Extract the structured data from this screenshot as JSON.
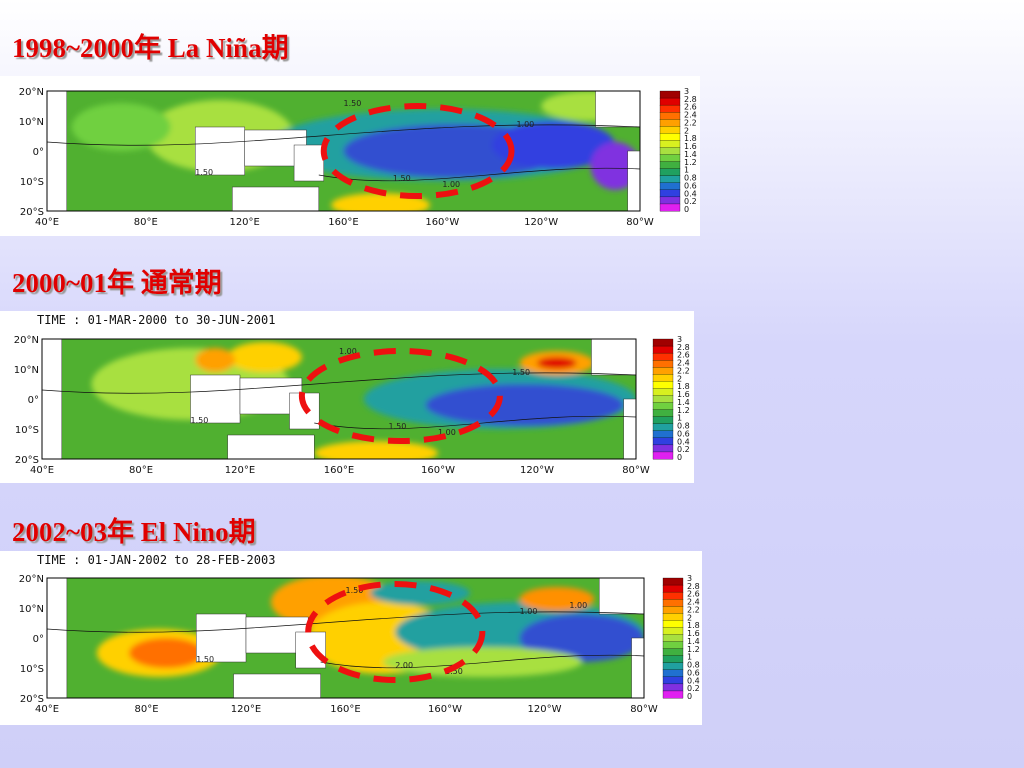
{
  "panels": [
    {
      "heading": "1998~2000年  La Niña期",
      "contours": [
        "1.50",
        "1.50",
        "1.00",
        "1.00",
        "1.50"
      ]
    },
    {
      "heading": "2000~01年   通常期",
      "time": "TIME : 01-MAR-2000 to 30-JUN-2001",
      "contours": [
        "1.00",
        "1.50",
        "1.00",
        "1.50",
        "1.50"
      ]
    },
    {
      "heading": "2002~03年 El Nino期",
      "time": "TIME : 01-JAN-2002  to 28-FEB-2003",
      "contours": [
        "1.50",
        "2.00",
        "1.50",
        "1.00",
        "1.50",
        "1.00"
      ]
    }
  ],
  "lat_labels": [
    "20°N",
    "10°N",
    "0°",
    "10°S",
    "20°S"
  ],
  "lon_labels": [
    "40°E",
    "80°E",
    "120°E",
    "160°E",
    "160°W",
    "120°W",
    "80°W"
  ],
  "colorbar_labels": [
    "3",
    "2.8",
    "2.6",
    "2.4",
    "2.2",
    "2",
    "1.8",
    "1.6",
    "1.4",
    "1.2",
    "1",
    "0.8",
    "0.6",
    "0.4",
    "0.2",
    "0"
  ]
}
